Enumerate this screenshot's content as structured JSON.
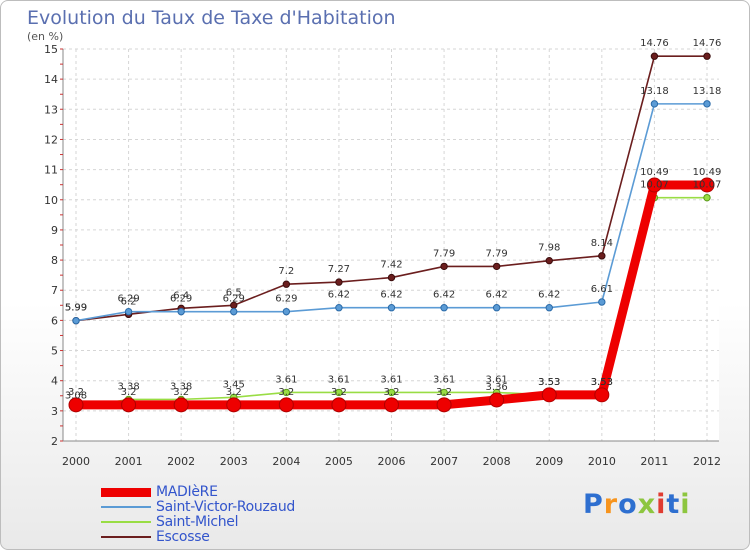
{
  "header": {
    "title": "Evolution du Taux de Taxe d'Habitation",
    "subtitle": "(en %)"
  },
  "logo": {
    "text": "Proxiti",
    "colors": [
      "#2e6fd0",
      "#f7941d",
      "#2e6fd0",
      "#8dc63f",
      "#e03c31",
      "#2e6fd0",
      "#8dc63f"
    ]
  },
  "chart_data": {
    "type": "line",
    "x": [
      "2000",
      "2001",
      "2002",
      "2003",
      "2004",
      "2005",
      "2006",
      "2007",
      "2008",
      "2009",
      "2010",
      "2011",
      "2012"
    ],
    "ylim": [
      2,
      15
    ],
    "yticks": [
      "2",
      "3",
      "4",
      "5",
      "6",
      "7",
      "8",
      "9",
      "10",
      "11",
      "12",
      "13",
      "14",
      "15"
    ],
    "grid": true,
    "legend_position": "bottom-left",
    "series": [
      {
        "name": "Escosse",
        "color": "#6b1e1e",
        "values": [
          5.99,
          6.2,
          6.4,
          6.5,
          7.2,
          7.27,
          7.42,
          7.79,
          7.79,
          7.98,
          8.14,
          14.76,
          14.76
        ],
        "labels": [
          "5.99",
          "6.2",
          "6.4",
          "6.5",
          "7.2",
          "7.27",
          "7.42",
          "7.79",
          "7.79",
          "7.98",
          "8.14",
          "14.76",
          "14.76"
        ]
      },
      {
        "name": "Saint-Victor-Rouzaud",
        "color": "#5b9bd5",
        "values": [
          5.99,
          6.29,
          6.29,
          6.29,
          6.29,
          6.42,
          6.42,
          6.42,
          6.42,
          6.42,
          6.61,
          13.18,
          13.18
        ],
        "labels": [
          "5.99",
          "6.29",
          "6.29",
          "6.29",
          "6.29",
          "6.42",
          "6.42",
          "6.42",
          "6.42",
          "6.42",
          "6.61",
          "13.18",
          "13.18"
        ]
      },
      {
        "name": "Saint-Michel",
        "color": "#99dd44",
        "values": [
          3.08,
          3.38,
          3.38,
          3.45,
          3.61,
          3.61,
          3.61,
          3.61,
          3.61,
          3.53,
          3.53,
          10.07,
          10.07
        ],
        "labels": [
          "3.08",
          "3.38",
          "3.38",
          "3.45",
          "3.61",
          "3.61",
          "3.61",
          "3.61",
          "3.61",
          "3.53",
          "3.53",
          "10.07",
          "10.07"
        ]
      },
      {
        "name": "MADIèRE",
        "color": "#ee0000",
        "values": [
          3.2,
          3.2,
          3.2,
          3.2,
          3.2,
          3.2,
          3.2,
          3.2,
          3.36,
          3.53,
          3.53,
          10.49,
          10.49
        ],
        "labels": [
          "3.2",
          "3.2",
          "3.2",
          "3.2",
          "3.2",
          "3.2",
          "3.2",
          "3.2",
          "3.36",
          "3.53",
          "3.53",
          "10.49",
          "10.49"
        ]
      }
    ]
  },
  "legend": {
    "items": [
      {
        "label": "MADIèRE",
        "color": "#ee0000",
        "width": 9
      },
      {
        "label": "Saint-Victor-Rouzaud",
        "color": "#5b9bd5",
        "width": 2
      },
      {
        "label": "Saint-Michel",
        "color": "#99dd44",
        "width": 2
      },
      {
        "label": "Escosse",
        "color": "#6b1e1e",
        "width": 2
      }
    ]
  }
}
